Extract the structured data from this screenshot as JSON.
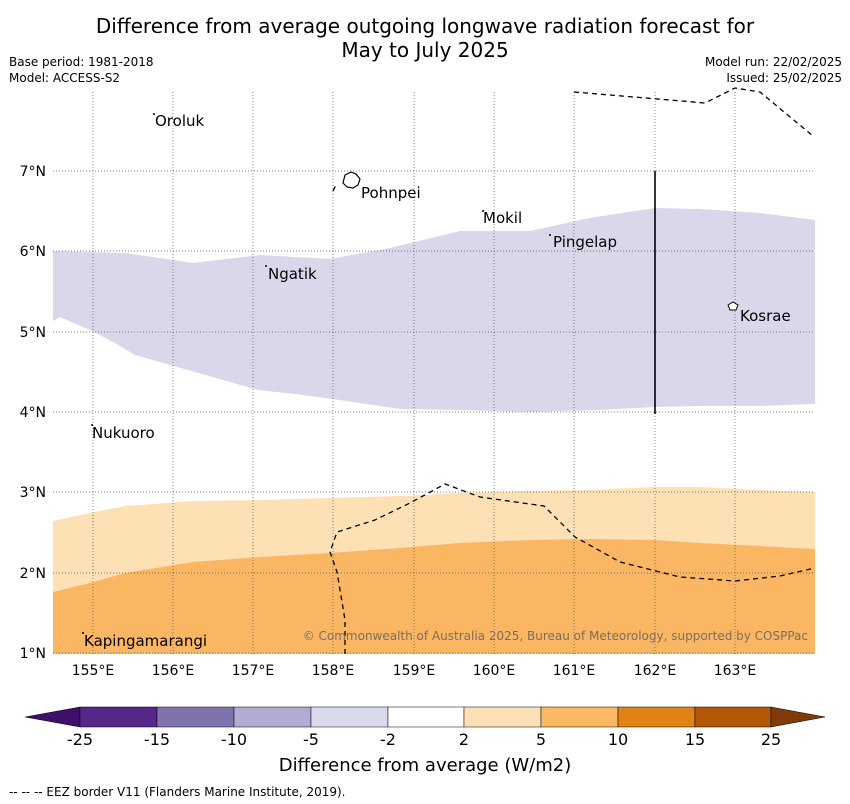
{
  "header": {
    "title_line1": "Difference from average outgoing longwave radiation forecast for",
    "title_line2": "May to July 2025",
    "base_period": "Base period: 1981-2018",
    "model": "Model: ACCESS-S2",
    "model_run": "Model run: 22/02/2025",
    "issued": "Issued: 25/02/2025"
  },
  "map": {
    "lon_ticks": [
      "155°E",
      "156°E",
      "157°E",
      "158°E",
      "159°E",
      "160°E",
      "161°E",
      "162°E",
      "163°E"
    ],
    "lat_ticks": [
      "7°N",
      "6°N",
      "5°N",
      "4°N",
      "3°N",
      "2°N",
      "1°N"
    ],
    "places": [
      {
        "name": "Oroluk"
      },
      {
        "name": "Pohnpei"
      },
      {
        "name": "Mokil"
      },
      {
        "name": "Pingelap"
      },
      {
        "name": "Ngatik"
      },
      {
        "name": "Kosrae"
      },
      {
        "name": "Nukuoro"
      },
      {
        "name": "Kapingamarangi"
      }
    ],
    "copyright": "© Commonwealth of Australia 2025, Bureau of Meteorology, supported by COSPPac",
    "colors": {
      "light_purple": "#d8d8ea",
      "light_orange": "#fde0b4",
      "mid_orange": "#fbb664"
    }
  },
  "colorbar": {
    "ticks": [
      "-25",
      "-15",
      "-10",
      "-5",
      "-2",
      "2",
      "5",
      "10",
      "15",
      "25"
    ],
    "colors": [
      "#3f0f6b",
      "#542788",
      "#8073ac",
      "#b2abd2",
      "#d8daeb",
      "#ffffff",
      "#fee0b6",
      "#fdb863",
      "#e08214",
      "#b35806",
      "#7f3b08"
    ],
    "title": "Difference from average (W/m2)"
  },
  "footnote": "--  --  -- EEZ border V11 (Flanders Marine Institute, 2019)."
}
